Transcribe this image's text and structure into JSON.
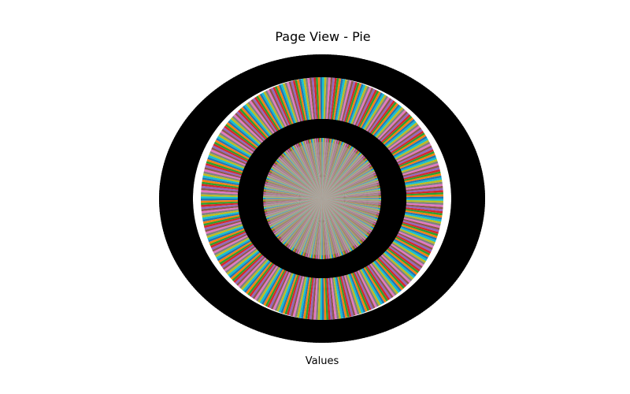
{
  "chart_data": {
    "type": "pie",
    "title": "Page View - Pie",
    "xlabel": "Values",
    "slice_count": 360,
    "slice_values": "approximately equal (slices not individually labeled legibly)",
    "slice_labels_legible": false,
    "palette": [
      "#1f77b4",
      "#ff7f0e",
      "#2ca02c",
      "#d62728",
      "#9467bd",
      "#8c564b",
      "#e377c2",
      "#7f7f7f",
      "#bcbd22",
      "#17becf"
    ],
    "background": "#ffffff",
    "legend": "none",
    "grid": false
  }
}
